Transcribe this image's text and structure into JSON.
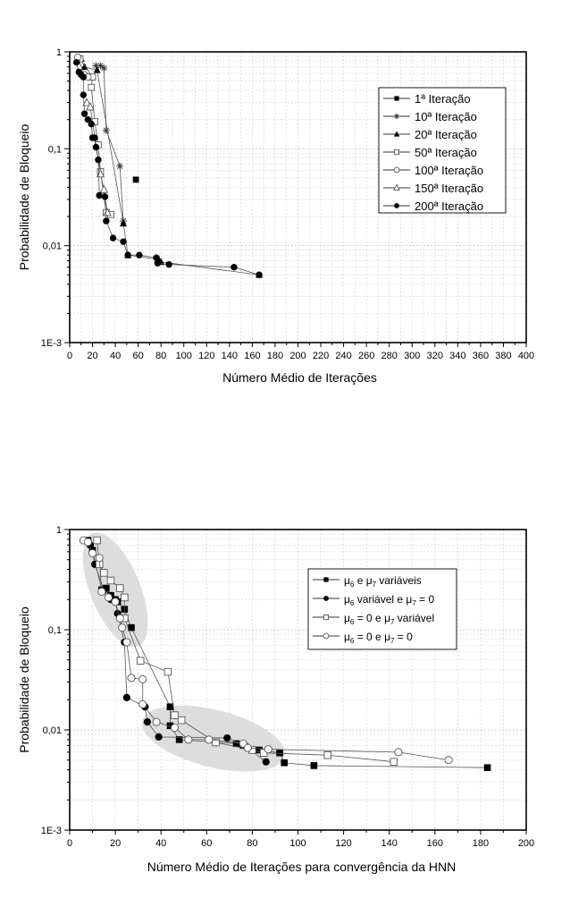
{
  "chart_data": [
    {
      "type": "scatter",
      "title": "",
      "xlabel": "Número Médio de Iterações",
      "ylabel": "Probabilidade de Bloqueio",
      "xlim": [
        0,
        400
      ],
      "ylim": [
        0.001,
        1
      ],
      "yscale": "log",
      "grid": true,
      "legend_position": "top-right",
      "x_ticks": [
        "0",
        "20",
        "40",
        "60",
        "80",
        "100",
        "120",
        "140",
        "160",
        "180",
        "200",
        "220",
        "240",
        "260",
        "280",
        "300",
        "320",
        "340",
        "360",
        "380",
        "400"
      ],
      "y_ticks": [
        {
          "value": 1,
          "label": "1"
        },
        {
          "value": 0.1,
          "label": "0,1"
        },
        {
          "value": 0.01,
          "label": "0,01"
        },
        {
          "value": 0.001,
          "label": "1E-3"
        }
      ],
      "series": [
        {
          "name": "1ª Iteração",
          "marker": "square-filled",
          "line": false,
          "points": [
            [
              58,
              0.048
            ]
          ]
        },
        {
          "name": "10ª Iteração",
          "marker": "star",
          "line": true,
          "points": [
            [
              23,
              0.72
            ],
            [
              27,
              0.72
            ],
            [
              30,
              0.68
            ],
            [
              32,
              0.155
            ],
            [
              44,
              0.066
            ],
            [
              47,
              0.018
            ]
          ]
        },
        {
          "name": "20ª Iteração",
          "marker": "triangle-filled",
          "line": true,
          "points": [
            [
              10,
              0.85
            ],
            [
              13,
              0.7
            ],
            [
              24,
              0.65
            ],
            [
              47,
              0.017
            ],
            [
              51,
              0.008
            ],
            [
              78,
              0.0072
            ],
            [
              80,
              0.0068
            ],
            [
              166,
              0.005
            ]
          ]
        },
        {
          "name": "50ª Iteração",
          "marker": "square-open",
          "line": true,
          "points": [
            [
              9,
              0.85
            ],
            [
              20,
              0.55
            ],
            [
              19,
              0.43
            ],
            [
              22,
              0.19
            ],
            [
              25,
              0.11
            ],
            [
              27,
              0.058
            ],
            [
              32,
              0.022
            ],
            [
              36,
              0.021
            ]
          ]
        },
        {
          "name": "100ª Iteração",
          "marker": "circle-open",
          "line": true,
          "points": [
            [
              7,
              0.88
            ],
            [
              13,
              0.58
            ],
            [
              16,
              0.55
            ]
          ]
        },
        {
          "name": "150ª Iteração",
          "marker": "triangle-open",
          "line": true,
          "points": [
            [
              15,
              0.3
            ],
            [
              18,
              0.27
            ],
            [
              27,
              0.055
            ],
            [
              30,
              0.038
            ],
            [
              33,
              0.022
            ]
          ]
        },
        {
          "name": "200ª Iteração",
          "marker": "circle-filled",
          "line": true,
          "points": [
            [
              6,
              0.78
            ],
            [
              8,
              0.62
            ],
            [
              10,
              0.58
            ],
            [
              12,
              0.55
            ],
            [
              12,
              0.36
            ],
            [
              13,
              0.23
            ],
            [
              16,
              0.2
            ],
            [
              19,
              0.18
            ],
            [
              20,
              0.13
            ],
            [
              22,
              0.13
            ],
            [
              23,
              0.104
            ],
            [
              25,
              0.077
            ],
            [
              26,
              0.033
            ],
            [
              31,
              0.032
            ],
            [
              32,
              0.018
            ],
            [
              38,
              0.012
            ],
            [
              47,
              0.011
            ],
            [
              51,
              0.008
            ],
            [
              61,
              0.008
            ],
            [
              76,
              0.0075
            ],
            [
              77,
              0.0066
            ],
            [
              87,
              0.0064
            ],
            [
              144,
              0.006
            ],
            [
              166,
              0.005
            ]
          ]
        }
      ]
    },
    {
      "type": "scatter",
      "title": "",
      "xlabel": "Número Médio de Iterações para convergência da HNN",
      "ylabel": "Probabilidade de Bloqueio",
      "xlim": [
        0,
        200
      ],
      "ylim": [
        0.001,
        1
      ],
      "yscale": "log",
      "grid": true,
      "legend_position": "top-right",
      "x_ticks": [
        "0",
        "20",
        "40",
        "60",
        "80",
        "100",
        "120",
        "140",
        "160",
        "180",
        "200"
      ],
      "y_ticks": [
        {
          "value": 1,
          "label": "1"
        },
        {
          "value": 0.1,
          "label": "0,1"
        },
        {
          "value": 0.01,
          "label": "0,01"
        },
        {
          "value": 0.001,
          "label": "1E-3"
        }
      ],
      "annotations": [
        "shaded-ellipse-high-blocking-region",
        "shaded-ellipse-low-blocking-region"
      ],
      "series": [
        {
          "name": "μ6 e μ7 variáveis",
          "legend_parts": [
            "μ",
            "6",
            " e μ",
            "7",
            " variáveis"
          ],
          "marker": "square-filled",
          "points": [
            [
              8,
              0.78
            ],
            [
              10,
              0.62
            ],
            [
              14,
              0.25
            ],
            [
              16,
              0.26
            ],
            [
              18,
              0.22
            ],
            [
              20,
              0.2
            ],
            [
              21,
              0.19
            ],
            [
              24,
              0.16
            ],
            [
              27,
              0.105
            ],
            [
              44,
              0.017
            ],
            [
              44,
              0.011
            ],
            [
              48,
              0.008
            ],
            [
              73,
              0.0073
            ],
            [
              76,
              0.007
            ],
            [
              83,
              0.0063
            ],
            [
              92,
              0.0059
            ],
            [
              94,
              0.0047
            ],
            [
              107,
              0.0044
            ],
            [
              183,
              0.0042
            ]
          ]
        },
        {
          "name": "μ6 variável e μ7 = 0",
          "legend_parts": [
            "μ",
            "6",
            " variável e μ",
            "7",
            " = 0"
          ],
          "marker": "circle-filled",
          "points": [
            [
              9,
              0.7
            ],
            [
              10,
              0.6
            ],
            [
              11,
              0.45
            ],
            [
              15,
              0.25
            ],
            [
              18,
              0.2
            ],
            [
              20,
              0.19
            ],
            [
              21,
              0.145
            ],
            [
              24,
              0.075
            ],
            [
              25,
              0.021
            ],
            [
              33,
              0.017
            ],
            [
              34,
              0.012
            ],
            [
              39,
              0.0085
            ],
            [
              69,
              0.0083
            ],
            [
              77,
              0.0069
            ],
            [
              86,
              0.0048
            ]
          ]
        },
        {
          "name": "μ6 = 0 e μ7 variável",
          "legend_parts": [
            "μ",
            "6",
            " = 0 e μ",
            "7",
            " variável"
          ],
          "marker": "square-open",
          "points": [
            [
              12,
              0.78
            ],
            [
              13,
              0.45
            ],
            [
              15,
              0.37
            ],
            [
              18,
              0.31
            ],
            [
              22,
              0.26
            ],
            [
              24,
              0.21
            ],
            [
              24,
              0.13
            ],
            [
              31,
              0.049
            ],
            [
              43,
              0.038
            ],
            [
              46,
              0.014
            ],
            [
              49,
              0.0125
            ],
            [
              64,
              0.0075
            ],
            [
              80,
              0.0063
            ],
            [
              85,
              0.0059
            ],
            [
              113,
              0.0056
            ],
            [
              142,
              0.0048
            ]
          ]
        },
        {
          "name": "μ6 = 0 e μ7 = 0",
          "legend_parts": [
            "μ",
            "6",
            " = 0 e μ",
            "7",
            " = 0"
          ],
          "marker": "circle-open",
          "points": [
            [
              6,
              0.78
            ],
            [
              8,
              0.75
            ],
            [
              10,
              0.58
            ],
            [
              13,
              0.52
            ],
            [
              14,
              0.24
            ],
            [
              17,
              0.21
            ],
            [
              20,
              0.19
            ],
            [
              22,
              0.13
            ],
            [
              23,
              0.105
            ],
            [
              25,
              0.075
            ],
            [
              27,
              0.033
            ],
            [
              32,
              0.032
            ],
            [
              32,
              0.018
            ],
            [
              38,
              0.012
            ],
            [
              46,
              0.0105
            ],
            [
              52,
              0.008
            ],
            [
              61,
              0.008
            ],
            [
              76,
              0.0073
            ],
            [
              78,
              0.0066
            ],
            [
              87,
              0.0064
            ],
            [
              144,
              0.006
            ],
            [
              166,
              0.005
            ]
          ]
        }
      ]
    }
  ]
}
